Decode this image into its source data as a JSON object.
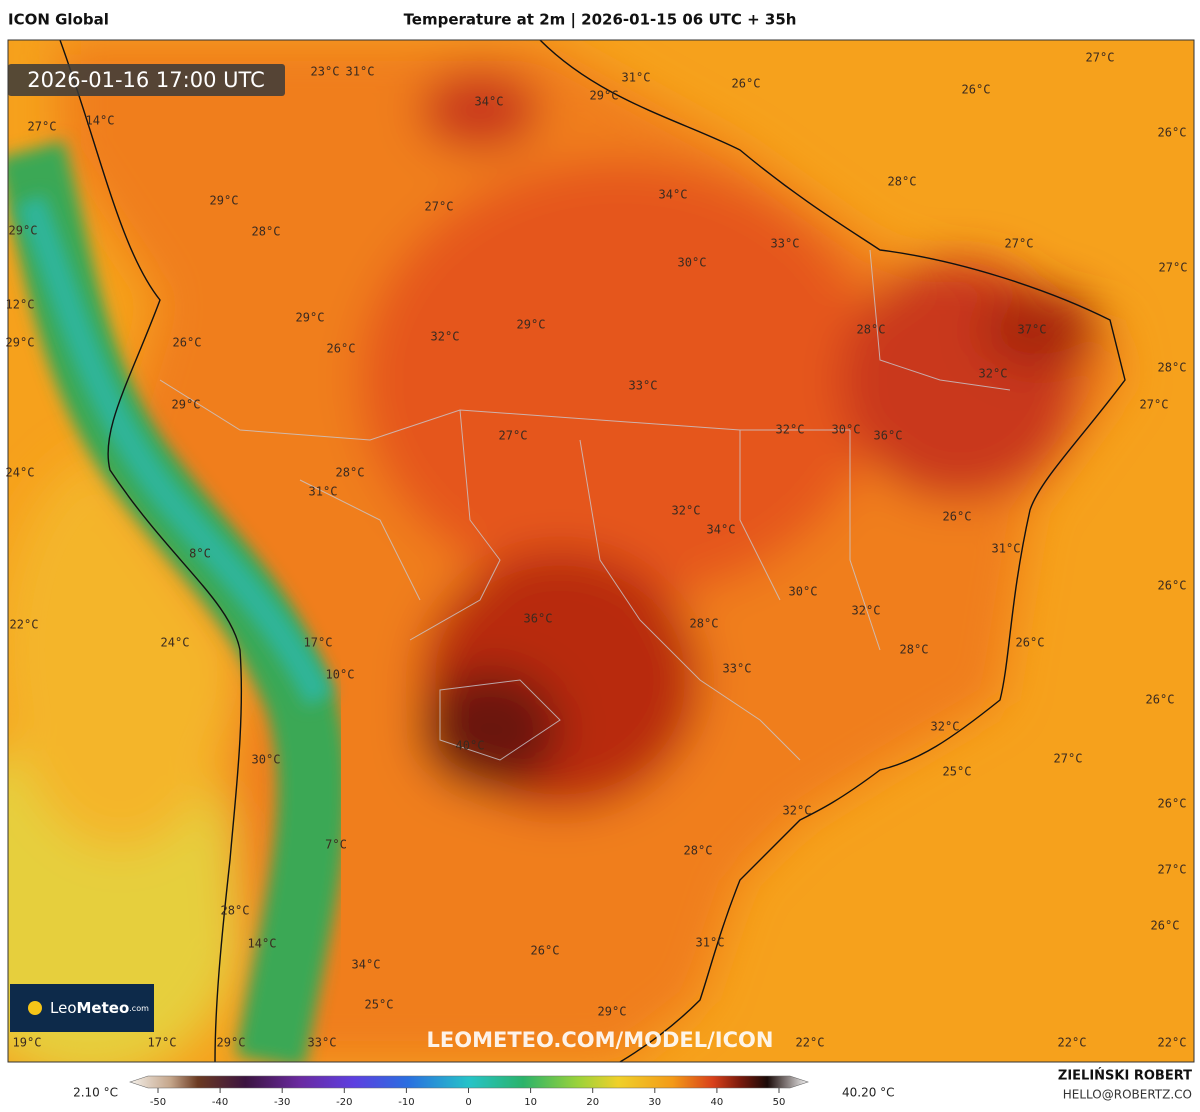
{
  "header": {
    "model": "ICON Global",
    "title": "Temperature at 2m | 2026-01-15 06 UTC + 35h"
  },
  "map": {
    "valid_time": "2026-01-16 17:00 UTC",
    "watermark": "LEOMETEO.COM/MODEL/ICON",
    "logo": {
      "leo": "Leo",
      "meteo": "Meteo",
      "com": ".com"
    },
    "labels": [
      "23°C",
      "31°C",
      "31°C",
      "29°C",
      "34°C",
      "26°C",
      "26°C",
      "27°C",
      "26°C",
      "27°C",
      "14°C",
      "29°C",
      "27°C",
      "34°C",
      "28°C",
      "29°C",
      "28°C",
      "30°C",
      "33°C",
      "27°C",
      "27°C",
      "12°C",
      "29°C",
      "32°C",
      "29°C",
      "28°C",
      "37°C",
      "29°C",
      "26°C",
      "26°C",
      "33°C",
      "32°C",
      "28°C",
      "29°C",
      "27°C",
      "27°C",
      "32°C",
      "30°C",
      "36°C",
      "24°C",
      "28°C",
      "31°C",
      "32°C",
      "34°C",
      "26°C",
      "31°C",
      "8°C",
      "30°C",
      "26°C",
      "36°C",
      "28°C",
      "32°C",
      "22°C",
      "24°C",
      "17°C",
      "26°C",
      "28°C",
      "10°C",
      "33°C",
      "26°C",
      "32°C",
      "40°C",
      "30°C",
      "27°C",
      "25°C",
      "26°C",
      "32°C",
      "7°C",
      "28°C",
      "27°C",
      "28°C",
      "26°C",
      "26°C",
      "31°C",
      "14°C",
      "34°C",
      "25°C",
      "29°C",
      "19°C",
      "17°C",
      "29°C",
      "33°C",
      "22°C",
      "22°C",
      "22°C"
    ]
  },
  "colorbar": {
    "min_label": "2.10 °C",
    "max_label": "40.20 °C",
    "ticks": [
      -50,
      -40,
      -30,
      -20,
      -10,
      0,
      10,
      20,
      30,
      40,
      50
    ]
  },
  "footer": {
    "author": "ZIELIŃSKI ROBERT",
    "email": "HELLO@ROBERTZ.CO"
  }
}
